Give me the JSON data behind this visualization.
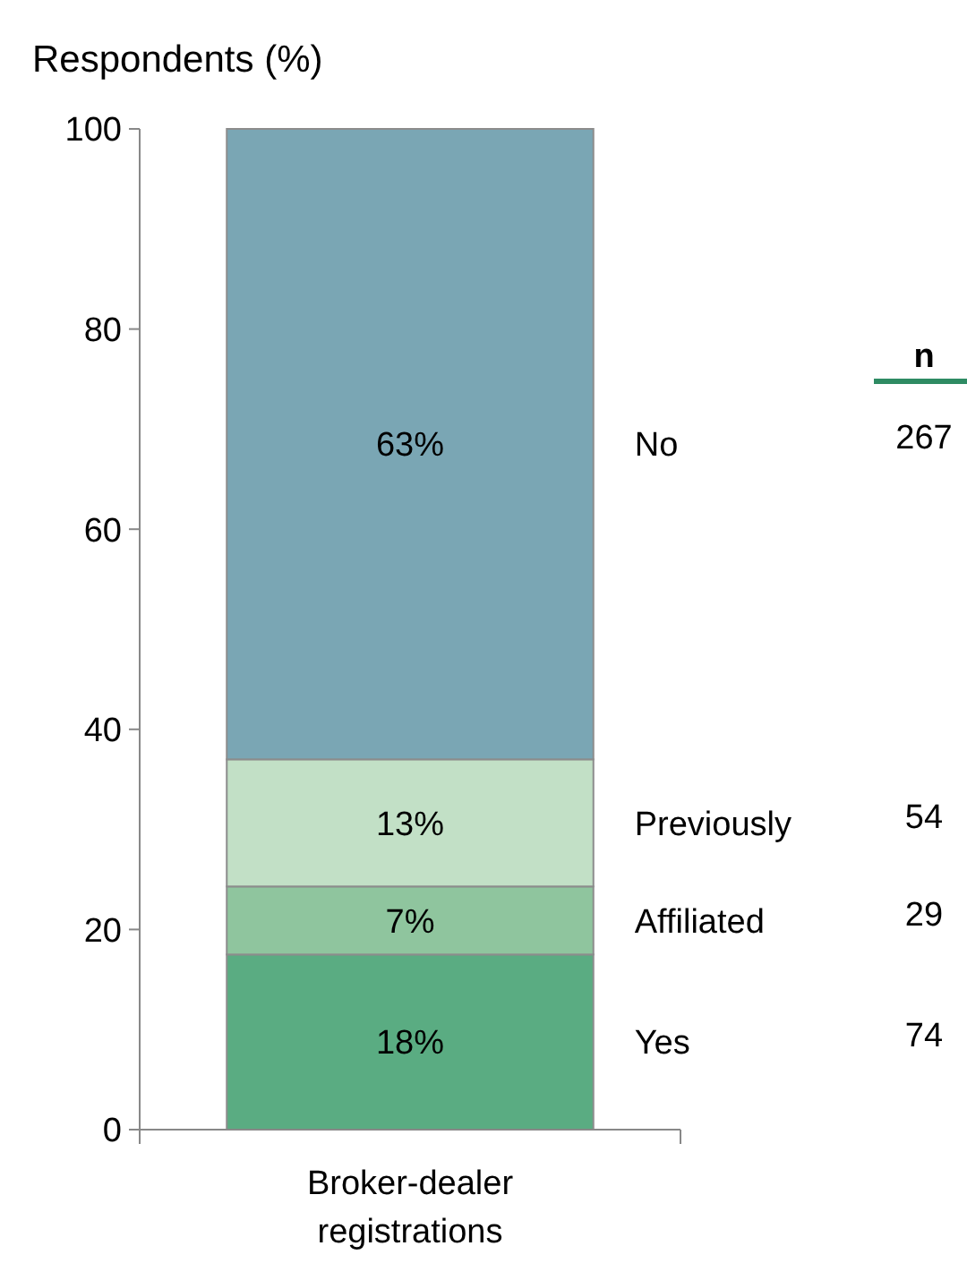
{
  "chart_data": {
    "type": "bar",
    "stacked": true,
    "ylabel": "Respondents (%)",
    "categories": [
      "Broker-dealer registrations"
    ],
    "series": [
      {
        "name": "Yes",
        "color": "#5aac82",
        "values": [
          17.5
        ],
        "value_labels": [
          "18%"
        ]
      },
      {
        "name": "Affiliated",
        "color": "#8fc59e",
        "values": [
          6.8
        ],
        "value_labels": [
          "7%"
        ]
      },
      {
        "name": "Previously",
        "color": "#c2e0c6",
        "values": [
          12.7
        ],
        "value_labels": [
          "13%"
        ]
      },
      {
        "name": "No",
        "color": "#7aa6b4",
        "values": [
          63
        ],
        "value_labels": [
          "63%"
        ]
      }
    ],
    "ylim": [
      0,
      100
    ],
    "yticks": [
      0,
      20,
      40,
      60,
      80,
      100
    ],
    "grid": false,
    "annotations": [
      "n",
      "74",
      "29",
      "54",
      "267"
    ]
  }
}
